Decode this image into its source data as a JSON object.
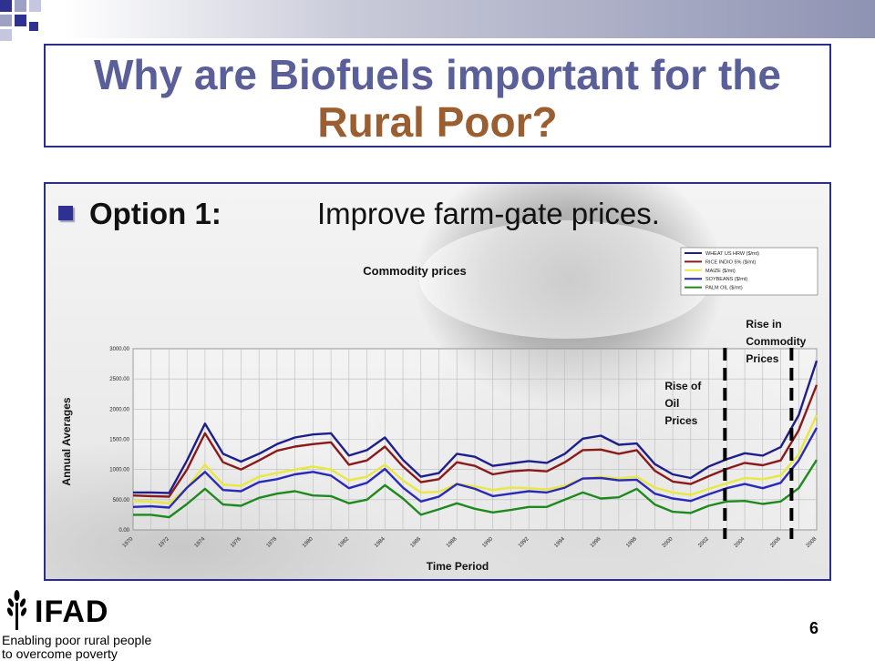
{
  "slide": {
    "title_part1": "Why are Biofuels important for the ",
    "title_part2": "Rural Poor?",
    "bullet_label": "Option 1:",
    "bullet_text": "Improve farm-gate prices.",
    "page_number": "6"
  },
  "logo": {
    "name": "IFAD",
    "tagline": "Enabling poor rural people to overcome poverty"
  },
  "colors": {
    "title": "#5a5f9a",
    "title_highlight": "#9b5e30",
    "border": "#2b2f86",
    "bullet": "#2e3192"
  },
  "chart_data": {
    "type": "line",
    "title": "Commodity prices",
    "xlabel": "Time Period",
    "ylabel": "Annual Averages",
    "ylim": [
      0,
      3000
    ],
    "yticks": [
      "0.00",
      "500.00",
      "1000.00",
      "1500.00",
      "2000.00",
      "2500.00",
      "3000.00"
    ],
    "x": [
      1970,
      1971,
      1972,
      1973,
      1974,
      1975,
      1976,
      1977,
      1978,
      1979,
      1980,
      1981,
      1982,
      1983,
      1984,
      1985,
      1986,
      1987,
      1988,
      1989,
      1990,
      1991,
      1992,
      1993,
      1994,
      1995,
      1996,
      1997,
      1998,
      1999,
      2000,
      2001,
      2002,
      2003,
      2004,
      2005,
      2006,
      2007,
      2008
    ],
    "xticks": [
      "1970",
      "1972",
      "1974",
      "1976",
      "1978",
      "1980",
      "1982",
      "1984",
      "1986",
      "1988",
      "1990",
      "1992",
      "1994",
      "1996",
      "1998",
      "2000",
      "2002",
      "2004",
      "2006",
      "2008"
    ],
    "grid": true,
    "legend_position": "top-right",
    "series": [
      {
        "name": "WHEAT US HRW ($/mt)",
        "color": "#1f1f8a",
        "values": [
          620,
          620,
          610,
          1150,
          1760,
          1260,
          1130,
          1260,
          1420,
          1530,
          1580,
          1600,
          1230,
          1320,
          1530,
          1160,
          880,
          940,
          1260,
          1210,
          1060,
          1100,
          1140,
          1110,
          1260,
          1510,
          1560,
          1410,
          1430,
          1090,
          920,
          860,
          1050,
          1170,
          1270,
          1230,
          1370,
          1900,
          2800
        ]
      },
      {
        "name": "RICE INDIO 5% ($/mt)",
        "color": "#8b1a1a",
        "values": [
          570,
          560,
          550,
          1000,
          1600,
          1120,
          1000,
          1150,
          1310,
          1380,
          1420,
          1450,
          1080,
          1150,
          1380,
          1050,
          790,
          840,
          1120,
          1060,
          920,
          970,
          990,
          970,
          1120,
          1320,
          1330,
          1260,
          1320,
          980,
          800,
          760,
          890,
          1010,
          1110,
          1070,
          1150,
          1650,
          2400
        ]
      },
      {
        "name": "MAIZE ($/mt)",
        "color": "#e8e840",
        "values": [
          480,
          470,
          440,
          700,
          1080,
          750,
          730,
          880,
          940,
          1000,
          1050,
          1000,
          820,
          880,
          1080,
          820,
          620,
          630,
          760,
          720,
          660,
          700,
          690,
          670,
          730,
          850,
          880,
          850,
          880,
          700,
          620,
          580,
          680,
          770,
          860,
          840,
          900,
          1250,
          1900
        ]
      },
      {
        "name": "SOYBEANS ($/mt)",
        "color": "#2a2ab8",
        "values": [
          380,
          390,
          370,
          700,
          960,
          660,
          640,
          790,
          840,
          920,
          960,
          900,
          690,
          780,
          1010,
          700,
          470,
          550,
          760,
          680,
          560,
          600,
          640,
          620,
          700,
          850,
          860,
          820,
          830,
          600,
          520,
          480,
          590,
          690,
          760,
          690,
          780,
          1150,
          1690
        ]
      },
      {
        "name": "PALM OIL ($/mt)",
        "color": "#1e8a1e",
        "values": [
          250,
          250,
          210,
          430,
          680,
          420,
          400,
          530,
          600,
          640,
          570,
          560,
          440,
          500,
          740,
          520,
          250,
          340,
          440,
          350,
          290,
          330,
          380,
          380,
          500,
          620,
          520,
          540,
          680,
          420,
          300,
          280,
          400,
          470,
          480,
          430,
          470,
          690,
          1160
        ]
      }
    ],
    "annotations": [
      {
        "text": "Rise of Oil Prices",
        "lines": [
          "Rise of",
          "Oil",
          "Prices"
        ],
        "x": 2003
      },
      {
        "text": "Rise in Commodity Prices",
        "lines": [
          "Rise in",
          "Commodity",
          "Prices"
        ],
        "x": 2007
      }
    ]
  }
}
